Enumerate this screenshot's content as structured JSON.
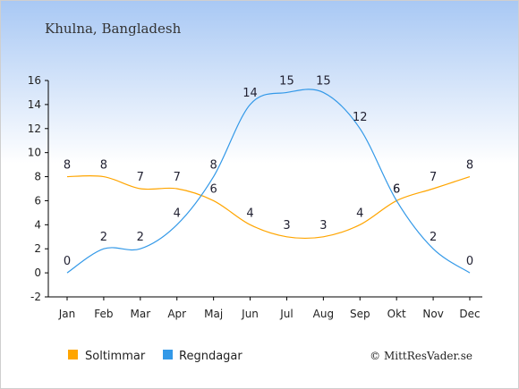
{
  "header": {
    "title": "Khulna, Bangladesh"
  },
  "footer": {
    "credit": "© MittResVader.se"
  },
  "colors": {
    "background_top": "#a8c8f4",
    "background_bottom": "#ffffff",
    "sun": "#ffa500",
    "rain": "#3399e8",
    "axis": "#000000"
  },
  "chart_data": {
    "type": "line",
    "categories": [
      "Jan",
      "Feb",
      "Mar",
      "Apr",
      "Maj",
      "Jun",
      "Jul",
      "Aug",
      "Sep",
      "Okt",
      "Nov",
      "Dec"
    ],
    "ylim": [
      -2,
      16
    ],
    "yticks": [
      -2,
      0,
      2,
      4,
      6,
      8,
      10,
      12,
      14,
      16
    ],
    "grid": false,
    "legend_position": "bottom",
    "series": [
      {
        "name": "Soltimmar",
        "color": "#ffa500",
        "values": [
          8,
          8,
          7,
          7,
          6,
          4,
          3,
          3,
          4,
          6,
          7,
          8
        ]
      },
      {
        "name": "Regndagar",
        "color": "#3399e8",
        "values": [
          0,
          2,
          2,
          4,
          8,
          14,
          15,
          15,
          12,
          6,
          2,
          0
        ]
      }
    ]
  }
}
